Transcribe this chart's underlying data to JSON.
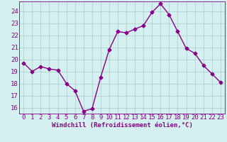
{
  "x": [
    0,
    1,
    2,
    3,
    4,
    5,
    6,
    7,
    8,
    9,
    10,
    11,
    12,
    13,
    14,
    15,
    16,
    17,
    18,
    19,
    20,
    21,
    22,
    23
  ],
  "y": [
    19.7,
    19.0,
    19.4,
    19.2,
    19.1,
    18.0,
    17.4,
    15.7,
    15.9,
    18.5,
    20.8,
    22.3,
    22.2,
    22.5,
    22.8,
    23.9,
    24.6,
    23.7,
    22.3,
    20.9,
    20.5,
    19.5,
    18.8,
    18.1
  ],
  "line_color": "#880088",
  "marker": "D",
  "marker_size": 2.5,
  "bg_color": "#d5f0f0",
  "grid_color": "#aacccc",
  "xlabel": "Windchill (Refroidissement éolien,°C)",
  "ylabel_ticks": [
    16,
    17,
    18,
    19,
    20,
    21,
    22,
    23,
    24
  ],
  "ylim": [
    15.5,
    24.8
  ],
  "xlim": [
    -0.5,
    23.5
  ],
  "tick_color": "#880088",
  "xlabel_color": "#880088",
  "xlabel_fontsize": 6.5,
  "tick_fontsize": 6.5,
  "line_width": 1.0
}
